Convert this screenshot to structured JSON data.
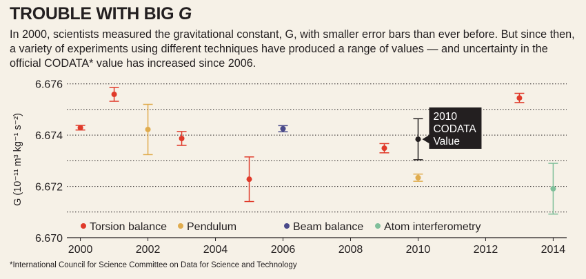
{
  "header": {
    "title": "TROUBLE WITH BIG ",
    "title_italic": "G",
    "subtitle": "In 2000, scientists measured the gravitational constant, G, with smaller error bars than ever before. But since then, a variety of experiments using different techniques have produced a range of values — and uncertainty in the official CODATA* value has increased since 2006."
  },
  "footnote": "*International Council for Science Committee on Data for Science and Technology",
  "chart_data": {
    "type": "scatter",
    "title": "",
    "xlabel": "",
    "ylabel": "G (10⁻¹¹ m³ kg⁻¹ s⁻²)",
    "xlim": [
      1999.6,
      2014.4
    ],
    "ylim": [
      6.67,
      6.6761
    ],
    "xticks": [
      2000,
      2002,
      2004,
      2006,
      2008,
      2010,
      2012,
      2014
    ],
    "yticks": [
      6.67,
      6.672,
      6.674,
      6.676
    ],
    "ytick_labels": [
      "6.670",
      "6.672",
      "6.674",
      "6.676"
    ],
    "grid": "horizontal dotted",
    "legend_position": "bottom-left",
    "series": [
      {
        "name": "Torsion balance",
        "color": "#e03a2a",
        "points": [
          {
            "x": 2000,
            "y": 6.67429,
            "err": 9e-05
          },
          {
            "x": 2001,
            "y": 6.67559,
            "err": 0.00027
          },
          {
            "x": 2003,
            "y": 6.67387,
            "err": 0.00027
          },
          {
            "x": 2005,
            "y": 6.67228,
            "err": 0.00087
          },
          {
            "x": 2009,
            "y": 6.67349,
            "err": 0.00018
          },
          {
            "x": 2013,
            "y": 6.67545,
            "err": 0.00018
          }
        ]
      },
      {
        "name": "Pendulum",
        "color": "#e0ac4e",
        "points": [
          {
            "x": 2002,
            "y": 6.67422,
            "err": 0.00098
          },
          {
            "x": 2010,
            "y": 6.67234,
            "err": 0.00014
          }
        ]
      },
      {
        "name": "Beam balance",
        "color": "#4a4a8a",
        "points": [
          {
            "x": 2006,
            "y": 6.67425,
            "err": 0.00012
          }
        ]
      },
      {
        "name": "Atom interferometry",
        "color": "#7fbf9a",
        "points": [
          {
            "x": 2014,
            "y": 6.67191,
            "err": 0.00099
          }
        ]
      }
    ],
    "reference": {
      "label": "2010 CODATA Value",
      "color": "#231f20",
      "x": 2010,
      "y": 6.67384,
      "err": 0.0008
    }
  }
}
